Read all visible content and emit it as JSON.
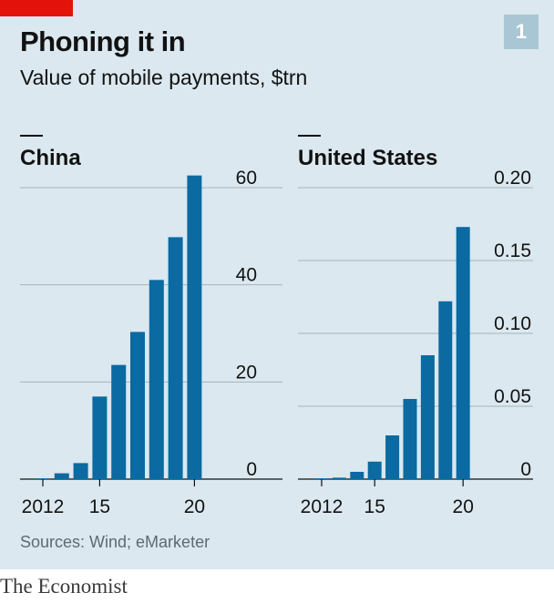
{
  "header": {
    "title": "Phoning it in",
    "subtitle": "Value of mobile payments, $trn",
    "chart_number": "1"
  },
  "footer": {
    "source": "Sources: Wind; eMarketer",
    "brand": "The Economist"
  },
  "colors": {
    "bar": "#0a6aa1",
    "background": "#dbe8ef",
    "gridline": "#a3b4bd",
    "accent_red": "#e3120b"
  },
  "chart_data": [
    {
      "type": "bar",
      "title": "China",
      "x": [
        2012,
        2013,
        2014,
        2015,
        2016,
        2017,
        2018,
        2019,
        2020
      ],
      "values": [
        0.1,
        1.2,
        3.3,
        17.0,
        23.5,
        30.3,
        41.0,
        49.8,
        62.5
      ],
      "xticks": [
        "2012",
        "15",
        "20"
      ],
      "xtick_years": [
        2012,
        2015,
        2020
      ],
      "yticks": [
        "0",
        "20",
        "40",
        "60"
      ],
      "ytick_values": [
        0,
        20,
        40,
        60
      ],
      "ylim": [
        0,
        60
      ],
      "xlabel": "",
      "ylabel": "",
      "grid": true,
      "y_axis_side": "right"
    },
    {
      "type": "bar",
      "title": "United States",
      "x": [
        2012,
        2013,
        2014,
        2015,
        2016,
        2017,
        2018,
        2019,
        2020
      ],
      "values": [
        0.0005,
        0.001,
        0.005,
        0.012,
        0.03,
        0.055,
        0.085,
        0.122,
        0.173
      ],
      "xticks": [
        "2012",
        "15",
        "20"
      ],
      "xtick_years": [
        2012,
        2015,
        2020
      ],
      "yticks": [
        "0",
        "0.05",
        "0.10",
        "0.15",
        "0.20"
      ],
      "ytick_values": [
        0,
        0.05,
        0.1,
        0.15,
        0.2
      ],
      "ylim": [
        0,
        0.2
      ],
      "xlabel": "",
      "ylabel": "",
      "grid": true,
      "y_axis_side": "right"
    }
  ]
}
